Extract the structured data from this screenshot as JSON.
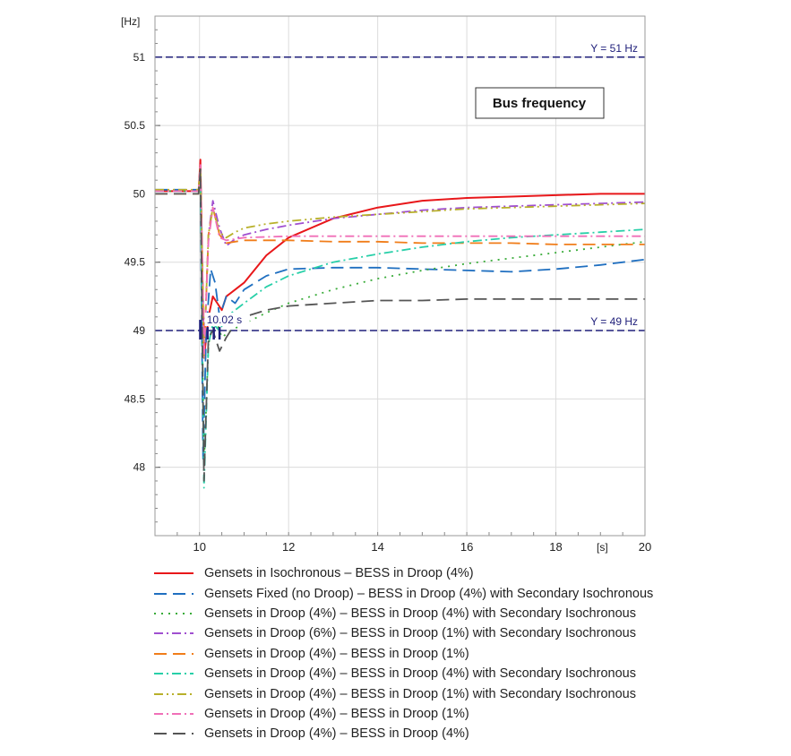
{
  "chart_data": {
    "type": "line",
    "title": "Bus frequency",
    "ylabel": "[Hz]",
    "xlabel": "[s]",
    "xlim": [
      9,
      20
    ],
    "ylim": [
      47.5,
      51.3
    ],
    "x_ticks": [
      {
        "value": 10,
        "label": "10"
      },
      {
        "value": 12,
        "label": "12"
      },
      {
        "value": 14,
        "label": "14"
      },
      {
        "value": 16,
        "label": "16"
      },
      {
        "value": 18,
        "label": "18"
      },
      {
        "value": 20,
        "label": "20"
      }
    ],
    "y_ticks": [
      {
        "value": 48,
        "label": "48"
      },
      {
        "value": 48.5,
        "label": "48.5"
      },
      {
        "value": 49,
        "label": "49"
      },
      {
        "value": 49.5,
        "label": "49.5"
      },
      {
        "value": 50,
        "label": "50"
      },
      {
        "value": 50.5,
        "label": "50.5"
      },
      {
        "value": 51,
        "label": "51"
      }
    ],
    "grid": true,
    "legend_position": "bottom",
    "reference_lines": [
      {
        "y": 51,
        "label": "Y = 51 Hz",
        "color": "#1f1f7a"
      },
      {
        "y": 49,
        "label": "Y = 49 Hz",
        "color": "#1f1f7a"
      }
    ],
    "annotation": {
      "x": 10.02,
      "label": "10.02 s"
    },
    "series": [
      {
        "name": "Gensets in Isochronous – BESS in Droop (4%)",
        "color": "#e8171a",
        "dash": "solid",
        "x": [
          9,
          9.98,
          10.02,
          10.1,
          10.2,
          10.3,
          10.4,
          10.5,
          10.6,
          10.8,
          11,
          11.5,
          12,
          13,
          14,
          15,
          16,
          17,
          18,
          19,
          20
        ],
        "y": [
          50.02,
          50.02,
          50.25,
          48.8,
          49.1,
          49.25,
          49.2,
          49.15,
          49.25,
          49.3,
          49.35,
          49.55,
          49.68,
          49.82,
          49.9,
          49.95,
          49.97,
          49.98,
          49.99,
          50.0,
          50.0
        ]
      },
      {
        "name": "Gensets Fixed (no Droop) – BESS in Droop (4%) with Secondary Isochronous",
        "color": "#1f6fc0",
        "dash": "long",
        "x": [
          9,
          9.98,
          10.02,
          10.08,
          10.15,
          10.25,
          10.35,
          10.45,
          10.6,
          10.8,
          11,
          11.5,
          12,
          13,
          14,
          15,
          16,
          17,
          18,
          19,
          20
        ],
        "y": [
          50.03,
          50.03,
          50.1,
          48.05,
          49.0,
          49.45,
          49.35,
          49.1,
          49.25,
          49.2,
          49.3,
          49.4,
          49.45,
          49.46,
          49.46,
          49.45,
          49.44,
          49.43,
          49.45,
          49.48,
          49.52
        ]
      },
      {
        "name": "Gensets in Droop (4%) – BESS in Droop (4%) with Secondary Isochronous",
        "color": "#3aac3a",
        "dash": "dotted",
        "x": [
          9,
          9.98,
          10.02,
          10.1,
          10.2,
          10.35,
          10.5,
          10.7,
          11,
          11.5,
          12,
          13,
          14,
          15,
          16,
          17,
          18,
          19,
          20
        ],
        "y": [
          50.02,
          50.02,
          50.2,
          48.0,
          48.9,
          49.1,
          48.95,
          49.0,
          49.05,
          49.13,
          49.2,
          49.3,
          49.38,
          49.44,
          49.49,
          49.53,
          49.57,
          49.61,
          49.65
        ]
      },
      {
        "name": "Gensets in Droop (6%) – BESS in Droop (1%) with Secondary Isochronous",
        "color": "#a04fd0",
        "dash": "dashdot",
        "x": [
          9,
          9.98,
          10.02,
          10.1,
          10.2,
          10.3,
          10.45,
          10.6,
          10.8,
          11,
          11.5,
          12,
          13,
          14,
          15,
          16,
          17,
          18,
          19,
          20
        ],
        "y": [
          50.02,
          50.02,
          50.2,
          48.8,
          49.7,
          49.95,
          49.75,
          49.62,
          49.67,
          49.7,
          49.74,
          49.77,
          49.82,
          49.85,
          49.88,
          49.9,
          49.91,
          49.92,
          49.93,
          49.94
        ]
      },
      {
        "name": "Gensets in Droop (4%) – BESS in Droop (1%)",
        "color": "#f07d1a",
        "dash": "long",
        "x": [
          9,
          9.98,
          10.02,
          10.1,
          10.2,
          10.3,
          10.45,
          10.6,
          10.8,
          11,
          12,
          13,
          14,
          15,
          16,
          17,
          18,
          19,
          20
        ],
        "y": [
          50.0,
          50.0,
          50.2,
          48.8,
          49.7,
          49.9,
          49.7,
          49.64,
          49.65,
          49.66,
          49.66,
          49.65,
          49.65,
          49.64,
          49.64,
          49.64,
          49.63,
          49.63,
          49.63
        ]
      },
      {
        "name": "Gensets in Droop (4%) – BESS in Droop (4%) with Secondary Isochronous",
        "color": "#27cfa8",
        "dash": "dashdot",
        "x": [
          9,
          9.98,
          10.02,
          10.1,
          10.2,
          10.3,
          10.45,
          10.6,
          10.8,
          11,
          11.5,
          12,
          13,
          14,
          15,
          16,
          17,
          18,
          19,
          20
        ],
        "y": [
          50.02,
          50.02,
          50.2,
          47.85,
          48.9,
          49.05,
          49.0,
          49.1,
          49.15,
          49.2,
          49.32,
          49.4,
          49.5,
          49.56,
          49.61,
          49.65,
          49.68,
          49.7,
          49.72,
          49.74
        ]
      },
      {
        "name": "Gensets in Droop (4%) – BESS in Droop (1%) with Secondary Isochronous",
        "color": "#b8b02a",
        "dash": "dashdotdot",
        "x": [
          9,
          9.98,
          10.02,
          10.1,
          10.2,
          10.3,
          10.45,
          10.6,
          10.8,
          11,
          11.5,
          12,
          13,
          14,
          15,
          16,
          17,
          18,
          19,
          20
        ],
        "y": [
          50.03,
          50.03,
          50.2,
          48.8,
          49.7,
          49.9,
          49.72,
          49.68,
          49.72,
          49.75,
          49.78,
          49.8,
          49.83,
          49.85,
          49.87,
          49.89,
          49.9,
          49.91,
          49.92,
          49.93
        ]
      },
      {
        "name": "Gensets in Droop (4%) – BESS in Droop (1%)",
        "color": "#f06fb8",
        "dash": "dashdot",
        "x": [
          9,
          9.98,
          10.02,
          10.1,
          10.2,
          10.3,
          10.45,
          10.6,
          10.8,
          11,
          12,
          13,
          14,
          15,
          16,
          17,
          18,
          19,
          20
        ],
        "y": [
          50.02,
          50.02,
          50.22,
          48.8,
          49.65,
          49.9,
          49.68,
          49.66,
          49.67,
          49.68,
          49.69,
          49.69,
          49.69,
          49.69,
          49.69,
          49.69,
          49.69,
          49.69,
          49.69
        ]
      },
      {
        "name": "Gensets in Droop (4%) – BESS in Droop (4%)",
        "color": "#555555",
        "dash": "long",
        "x": [
          9,
          9.98,
          10.02,
          10.1,
          10.2,
          10.3,
          10.45,
          10.6,
          10.8,
          11,
          11.5,
          12,
          13,
          14,
          15,
          16,
          17,
          18,
          19,
          20
        ],
        "y": [
          50.0,
          50.0,
          50.18,
          47.9,
          48.95,
          49.0,
          48.85,
          48.95,
          49.05,
          49.1,
          49.15,
          49.18,
          49.2,
          49.22,
          49.22,
          49.23,
          49.23,
          49.23,
          49.23,
          49.23
        ]
      }
    ]
  }
}
